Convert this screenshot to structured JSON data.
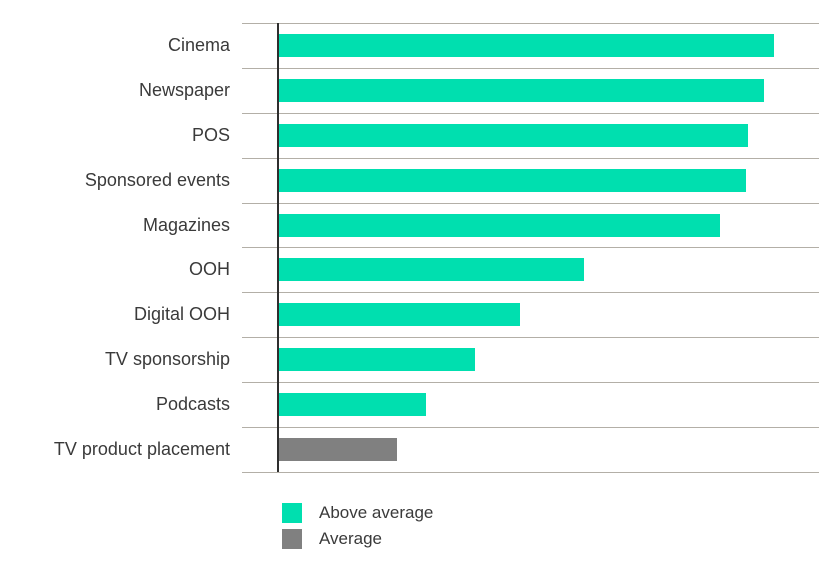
{
  "chart_data": {
    "type": "bar",
    "orientation": "horizontal",
    "title": "",
    "xlabel": "",
    "ylabel": "",
    "categories": [
      "Cinema",
      "Newspaper",
      "POS",
      "Sponsored events",
      "Magazines",
      "OOH",
      "Digital OOH",
      "TV sponsorship",
      "Podcasts",
      "TV product placement"
    ],
    "values": [
      91.7,
      89.8,
      86.9,
      86.5,
      81.7,
      56.5,
      44.6,
      36.3,
      27.2,
      21.9
    ],
    "value_unit": "percent-of-plot-width (x axis unlabeled in source)",
    "xlim": [
      0,
      100
    ],
    "x_axis_labels_visible": false,
    "grid": "horizontal category separator lines",
    "bar_colors": [
      "#00dfaf",
      "#00dfaf",
      "#00dfaf",
      "#00dfaf",
      "#00dfaf",
      "#00dfaf",
      "#00dfaf",
      "#00dfaf",
      "#00dfaf",
      "#808080"
    ],
    "legend_position": "bottom-left",
    "legend": [
      {
        "label": "Above average",
        "color": "#00dfaf"
      },
      {
        "label": "Average",
        "color": "#808080"
      }
    ]
  },
  "colors": {
    "above_average": "#00dfaf",
    "average": "#808080",
    "gridline": "#b3afa7",
    "axis_line": "#2e2e2e",
    "label_text": "#3a3a3a",
    "background": "#ffffff"
  }
}
